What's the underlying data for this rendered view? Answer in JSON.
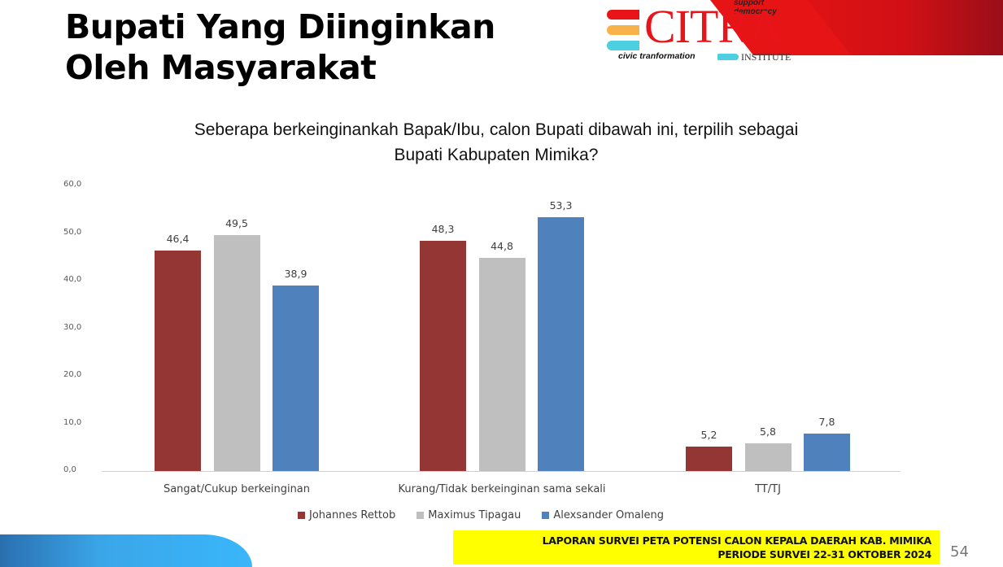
{
  "slide": {
    "title_lines": [
      "Bupati Yang Diinginkan",
      "Oleh Masyarakat"
    ],
    "question_lines": [
      "Seberapa berkeinginankah Bapak/Ibu, calon Bupati dibawah ini, terpilih sebagai",
      "Bupati Kabupaten Mimika?"
    ],
    "logo": {
      "name": "CITRA",
      "tagline": "support democracy",
      "subtitle": "civic tranformation",
      "institute": "INSTITUTE",
      "colors": {
        "red": "#e8141a",
        "orange": "#f7b24a",
        "cyan": "#4ccfe0"
      }
    },
    "footer": {
      "line1": "LAPORAN SURVEI PETA POTENSI CALON KEPALA DAERAH KAB. MIMIKA",
      "line2": "PERIODE SURVEI 22-31 OKTOBER 2024",
      "background": "#ffff00"
    },
    "page_number": "54"
  },
  "chart_data": {
    "type": "bar",
    "title": "Seberapa berkeinginankah Bapak/Ibu, calon Bupati dibawah ini, terpilih sebagai Bupati Kabupaten Mimika?",
    "xlabel": "",
    "ylabel": "",
    "ylim": [
      0,
      60
    ],
    "yticks": [
      "0,0",
      "10,0",
      "20,0",
      "30,0",
      "40,0",
      "50,0",
      "60,0"
    ],
    "grid": false,
    "legend_position": "bottom",
    "categories": [
      "Sangat/Cukup berkeinginan",
      "Kurang/Tidak berkeinginan sama sekali",
      "TT/TJ"
    ],
    "series": [
      {
        "name": "Johannes Rettob",
        "color": "#943634",
        "values": [
          46.4,
          48.3,
          5.2
        ],
        "labels": [
          "46,4",
          "48,3",
          "5,2"
        ]
      },
      {
        "name": "Maximus Tipagau",
        "color": "#bfbfbf",
        "values": [
          49.5,
          44.8,
          5.8
        ],
        "labels": [
          "49,5",
          "44,8",
          "5,8"
        ]
      },
      {
        "name": "Alexsander Omaleng",
        "color": "#4f81bd",
        "values": [
          38.9,
          53.3,
          7.8
        ],
        "labels": [
          "38,9",
          "53,3",
          "7,8"
        ]
      }
    ]
  }
}
